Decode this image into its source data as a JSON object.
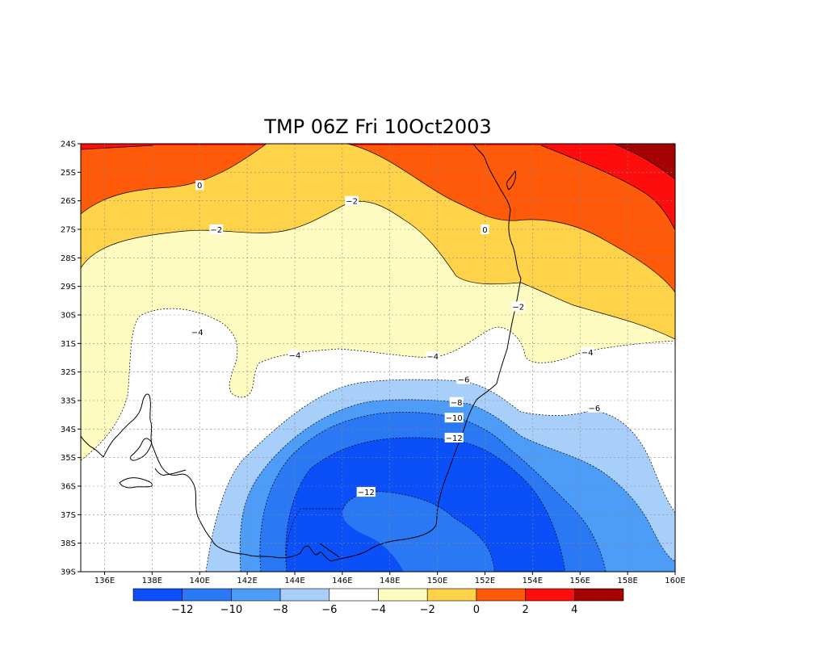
{
  "title": "TMP 06Z Fri 10Oct2003",
  "map": {
    "variable": "TMP",
    "lat_ticks": [
      "24S",
      "25S",
      "26S",
      "27S",
      "28S",
      "29S",
      "30S",
      "31S",
      "32S",
      "33S",
      "34S",
      "35S",
      "36S",
      "37S",
      "38S",
      "39S"
    ],
    "lon_ticks": [
      "136E",
      "138E",
      "140E",
      "142E",
      "144E",
      "146E",
      "148E",
      "150E",
      "152E",
      "154E",
      "156E",
      "158E",
      "160E"
    ],
    "grid": true,
    "contour_levels": [
      -12,
      -10,
      -8,
      -6,
      -4,
      -2,
      0,
      2,
      4
    ],
    "contour_labels": [
      {
        "text": "0",
        "lon": 140.0,
        "lat": -25.45
      },
      {
        "text": "-2",
        "lon": 146.4,
        "lat": -26.0
      },
      {
        "text": "-2",
        "lon": 140.7,
        "lat": -27.0
      },
      {
        "text": "0",
        "lon": 152.0,
        "lat": -27.0
      },
      {
        "text": "-2",
        "lon": 153.4,
        "lat": -29.7
      },
      {
        "text": "-4",
        "lon": 139.9,
        "lat": -30.6
      },
      {
        "text": "-4",
        "lon": 144.0,
        "lat": -31.4
      },
      {
        "text": "-4",
        "lon": 149.8,
        "lat": -31.45
      },
      {
        "text": "-4",
        "lon": 156.3,
        "lat": -31.3
      },
      {
        "text": "-6",
        "lon": 151.1,
        "lat": -32.25
      },
      {
        "text": "-8",
        "lon": 150.8,
        "lat": -33.05
      },
      {
        "text": "-10",
        "lon": 150.7,
        "lat": -33.6
      },
      {
        "text": "-12",
        "lon": 150.7,
        "lat": -34.3
      },
      {
        "text": "-6",
        "lon": 156.6,
        "lat": -33.25
      },
      {
        "text": "-12",
        "lon": 147.0,
        "lat": -36.2
      }
    ]
  },
  "colorbar": {
    "colors": [
      "#0b4ff8",
      "#2a78f4",
      "#4c9cf8",
      "#a7cff9",
      "#ffffff",
      "#fefbc1",
      "#fed249",
      "#fe5a09",
      "#fe0d0d",
      "#a50303"
    ],
    "labels": [
      "-12",
      "-10",
      "-8",
      "-6",
      "-4",
      "-2",
      "0",
      "2",
      "4"
    ]
  }
}
